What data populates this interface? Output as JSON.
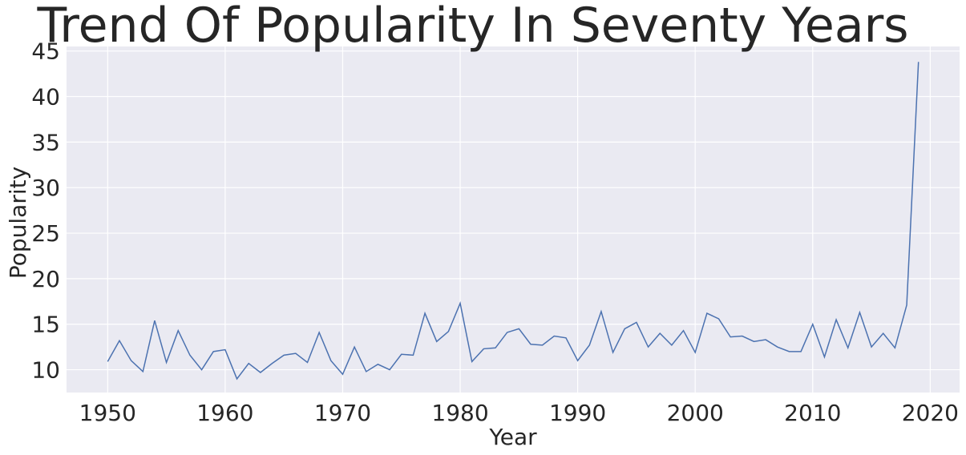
{
  "chart_data": {
    "type": "line",
    "title": "Trend Of Popularity In Seventy Years",
    "xlabel": "Year",
    "ylabel": "Popularity",
    "xlim": [
      1946.5,
      2022.5
    ],
    "ylim": [
      7.5,
      45.5
    ],
    "xticks": [
      1950,
      1960,
      1970,
      1980,
      1990,
      2000,
      2010,
      2020
    ],
    "yticks": [
      10,
      15,
      20,
      25,
      30,
      35,
      40,
      45
    ],
    "grid": true,
    "colors": {
      "background": "#eaeaf2",
      "grid": "#ffffff",
      "line": "#4c72b0",
      "text": "#262626"
    },
    "series": [
      {
        "x": [
          1950,
          1951,
          1952,
          1953,
          1954,
          1955,
          1956,
          1957,
          1958,
          1959,
          1960,
          1961,
          1962,
          1963,
          1964,
          1965,
          1966,
          1967,
          1968,
          1969,
          1970,
          1971,
          1972,
          1973,
          1974,
          1975,
          1976,
          1977,
          1978,
          1979,
          1980,
          1981,
          1982,
          1983,
          1984,
          1985,
          1986,
          1987,
          1988,
          1989,
          1990,
          1991,
          1992,
          1993,
          1994,
          1995,
          1996,
          1997,
          1998,
          1999,
          2000,
          2001,
          2002,
          2003,
          2004,
          2005,
          2006,
          2007,
          2008,
          2009,
          2010,
          2011,
          2012,
          2013,
          2014,
          2015,
          2016,
          2017,
          2018,
          2019
        ],
        "values": [
          10.9,
          13.2,
          11.0,
          9.8,
          15.4,
          10.8,
          14.3,
          11.6,
          10.0,
          12.0,
          12.2,
          9.0,
          10.7,
          9.7,
          10.7,
          11.6,
          11.8,
          10.8,
          14.1,
          11.0,
          9.5,
          12.5,
          9.8,
          10.6,
          10.0,
          11.7,
          11.6,
          16.2,
          13.1,
          14.2,
          17.3,
          10.9,
          12.3,
          12.4,
          14.1,
          14.5,
          12.8,
          12.7,
          13.7,
          13.5,
          11.0,
          12.7,
          16.4,
          11.9,
          14.5,
          15.2,
          12.5,
          14.0,
          12.7,
          14.3,
          11.9,
          16.2,
          15.6,
          13.6,
          13.7,
          13.1,
          13.3,
          12.5,
          12.0,
          12.0,
          15.0,
          11.4,
          15.5,
          12.4,
          16.3,
          12.5,
          14.0,
          12.4,
          17.1,
          43.8
        ]
      }
    ]
  }
}
